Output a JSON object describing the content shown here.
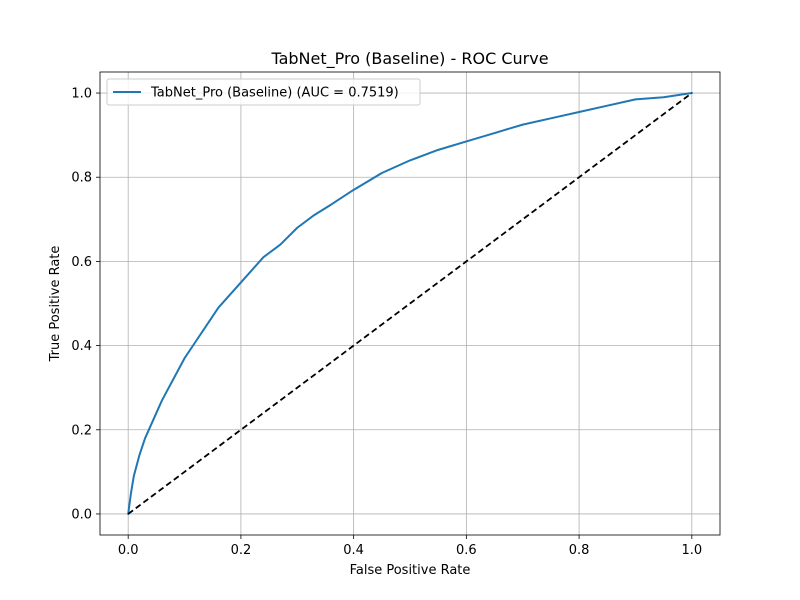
{
  "chart_data": {
    "type": "line",
    "title": "TabNet_Pro (Baseline) - ROC Curve",
    "xlabel": "False Positive Rate",
    "ylabel": "True Positive Rate",
    "xlim": [
      -0.05,
      1.05
    ],
    "ylim": [
      -0.05,
      1.05
    ],
    "xticks": [
      0.0,
      0.2,
      0.4,
      0.6,
      0.8,
      1.0
    ],
    "yticks": [
      0.0,
      0.2,
      0.4,
      0.6,
      0.8,
      1.0
    ],
    "tick_labels": [
      "0.0",
      "0.2",
      "0.4",
      "0.6",
      "0.8",
      "1.0"
    ],
    "grid": true,
    "legend_position": "top-left",
    "series": [
      {
        "name": "TabNet_Pro (Baseline) (AUC = 0.7519)",
        "color": "#1f77b4",
        "style": "solid",
        "x": [
          0.0,
          0.005,
          0.01,
          0.02,
          0.03,
          0.04,
          0.05,
          0.06,
          0.08,
          0.1,
          0.12,
          0.14,
          0.16,
          0.18,
          0.2,
          0.22,
          0.24,
          0.27,
          0.3,
          0.33,
          0.36,
          0.4,
          0.45,
          0.5,
          0.55,
          0.6,
          0.65,
          0.7,
          0.75,
          0.8,
          0.85,
          0.9,
          0.95,
          1.0
        ],
        "y": [
          0.0,
          0.05,
          0.09,
          0.14,
          0.18,
          0.21,
          0.24,
          0.27,
          0.32,
          0.37,
          0.41,
          0.45,
          0.49,
          0.52,
          0.55,
          0.58,
          0.61,
          0.64,
          0.68,
          0.71,
          0.735,
          0.77,
          0.81,
          0.84,
          0.865,
          0.885,
          0.905,
          0.925,
          0.94,
          0.955,
          0.97,
          0.985,
          0.99,
          1.0
        ]
      },
      {
        "name": "",
        "color": "#000000",
        "style": "dashed",
        "x": [
          0.0,
          1.0
        ],
        "y": [
          0.0,
          1.0
        ]
      }
    ]
  }
}
